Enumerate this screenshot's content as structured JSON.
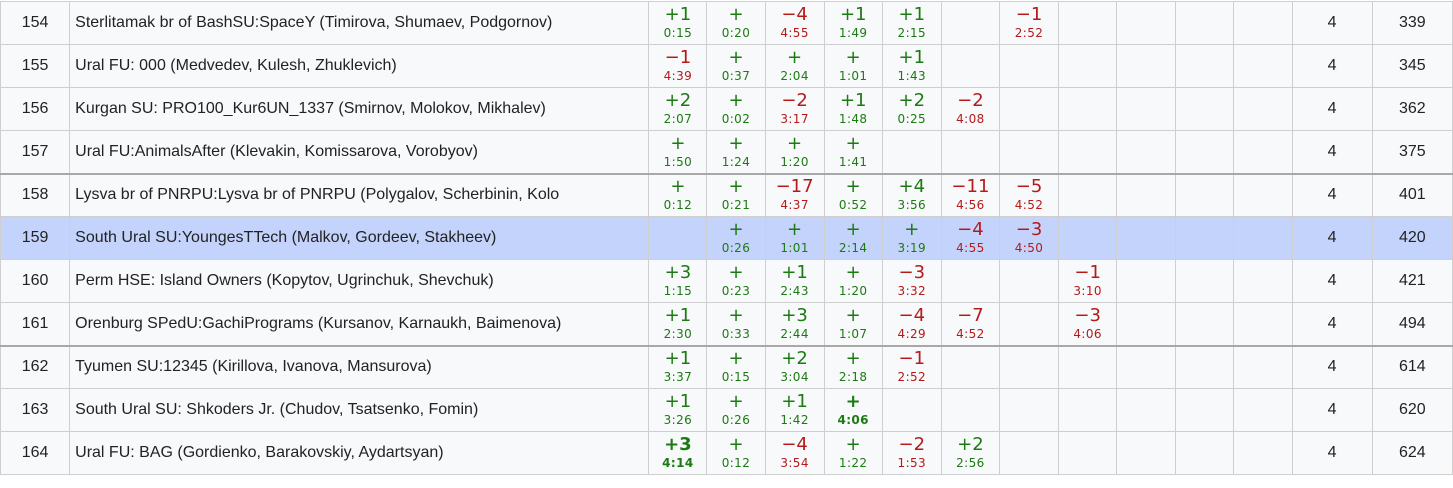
{
  "colors": {
    "solved": "#1c7a12",
    "failed": "#b51a1a",
    "highlight_row": "#c4d3fb",
    "row_bg": "#f8f9fa"
  },
  "rows": [
    {
      "rank": "154",
      "team": "Sterlitamak br of BashSU:SpaceY (Timirova, Shumaev, Podgornov)",
      "solved": "4",
      "penalty": "339",
      "problems": [
        {
          "s": "+1",
          "t": "0:15",
          "ok": true
        },
        {
          "s": "+",
          "t": "0:20",
          "ok": true
        },
        {
          "s": "−4",
          "t": "4:55",
          "ok": false
        },
        {
          "s": "+1",
          "t": "1:49",
          "ok": true
        },
        {
          "s": "+1",
          "t": "2:15",
          "ok": true
        },
        null,
        {
          "s": "−1",
          "t": "2:52",
          "ok": false
        },
        null,
        null,
        null,
        null
      ]
    },
    {
      "rank": "155",
      "team": "Ural FU: 000 (Medvedev, Kulesh, Zhuklevich)",
      "solved": "4",
      "penalty": "345",
      "problems": [
        {
          "s": "−1",
          "t": "4:39",
          "ok": false
        },
        {
          "s": "+",
          "t": "0:37",
          "ok": true
        },
        {
          "s": "+",
          "t": "2:04",
          "ok": true
        },
        {
          "s": "+",
          "t": "1:01",
          "ok": true
        },
        {
          "s": "+1",
          "t": "1:43",
          "ok": true
        },
        null,
        null,
        null,
        null,
        null,
        null
      ]
    },
    {
      "rank": "156",
      "team": "Kurgan SU: PRO100_Kur6UN_1337 (Smirnov, Molokov, Mikhalev)",
      "solved": "4",
      "penalty": "362",
      "problems": [
        {
          "s": "+2",
          "t": "2:07",
          "ok": true
        },
        {
          "s": "+",
          "t": "0:02",
          "ok": true
        },
        {
          "s": "−2",
          "t": "3:17",
          "ok": false
        },
        {
          "s": "+1",
          "t": "1:48",
          "ok": true
        },
        {
          "s": "+2",
          "t": "0:25",
          "ok": true
        },
        {
          "s": "−2",
          "t": "4:08",
          "ok": false
        },
        null,
        null,
        null,
        null,
        null
      ]
    },
    {
      "rank": "157",
      "team": "Ural FU:AnimalsAfter (Klevakin, Komissarova, Vorobyov)",
      "solved": "4",
      "penalty": "375",
      "problems": [
        {
          "s": "+",
          "t": "1:50",
          "ok": true
        },
        {
          "s": "+",
          "t": "1:24",
          "ok": true
        },
        {
          "s": "+",
          "t": "1:20",
          "ok": true
        },
        {
          "s": "+",
          "t": "1:41",
          "ok": true
        },
        null,
        null,
        null,
        null,
        null,
        null,
        null
      ]
    },
    {
      "rank": "158",
      "team": "Lysva br of PNRPU:Lysva br of PNRPU (Polygalov, Scherbinin, Kolo",
      "solved": "4",
      "penalty": "401",
      "groupStart": true,
      "problems": [
        {
          "s": "+",
          "t": "0:12",
          "ok": true
        },
        {
          "s": "+",
          "t": "0:21",
          "ok": true
        },
        {
          "s": "−17",
          "t": "4:37",
          "ok": false
        },
        {
          "s": "+",
          "t": "0:52",
          "ok": true
        },
        {
          "s": "+4",
          "t": "3:56",
          "ok": true
        },
        {
          "s": "−11",
          "t": "4:56",
          "ok": false
        },
        {
          "s": "−5",
          "t": "4:52",
          "ok": false
        },
        null,
        null,
        null,
        null
      ]
    },
    {
      "rank": "159",
      "team": "South Ural SU:YoungesTTech (Malkov, Gordeev, Stakheev)",
      "solved": "4",
      "penalty": "420",
      "highlight": true,
      "problems": [
        null,
        {
          "s": "+",
          "t": "0:26",
          "ok": true
        },
        {
          "s": "+",
          "t": "1:01",
          "ok": true
        },
        {
          "s": "+",
          "t": "2:14",
          "ok": true
        },
        {
          "s": "+",
          "t": "3:19",
          "ok": true
        },
        {
          "s": "−4",
          "t": "4:55",
          "ok": false
        },
        {
          "s": "−3",
          "t": "4:50",
          "ok": false
        },
        null,
        null,
        null,
        null
      ]
    },
    {
      "rank": "160",
      "team": "Perm HSE: Island Owners (Kopytov, Ugrinchuk, Shevchuk)",
      "solved": "4",
      "penalty": "421",
      "problems": [
        {
          "s": "+3",
          "t": "1:15",
          "ok": true
        },
        {
          "s": "+",
          "t": "0:23",
          "ok": true
        },
        {
          "s": "+1",
          "t": "2:43",
          "ok": true
        },
        {
          "s": "+",
          "t": "1:20",
          "ok": true
        },
        {
          "s": "−3",
          "t": "3:32",
          "ok": false
        },
        null,
        null,
        {
          "s": "−1",
          "t": "3:10",
          "ok": false
        },
        null,
        null,
        null
      ]
    },
    {
      "rank": "161",
      "team": "Orenburg SPedU:GachiPrograms (Kursanov, Karnaukh, Baimenova)",
      "solved": "4",
      "penalty": "494",
      "problems": [
        {
          "s": "+1",
          "t": "2:30",
          "ok": true
        },
        {
          "s": "+",
          "t": "0:33",
          "ok": true
        },
        {
          "s": "+3",
          "t": "2:44",
          "ok": true
        },
        {
          "s": "+",
          "t": "1:07",
          "ok": true
        },
        {
          "s": "−4",
          "t": "4:29",
          "ok": false
        },
        {
          "s": "−7",
          "t": "4:52",
          "ok": false
        },
        null,
        {
          "s": "−3",
          "t": "4:06",
          "ok": false
        },
        null,
        null,
        null
      ]
    },
    {
      "rank": "162",
      "team": "Tyumen SU:12345 (Kirillova, Ivanova, Mansurova)",
      "solved": "4",
      "penalty": "614",
      "groupStart": true,
      "problems": [
        {
          "s": "+1",
          "t": "3:37",
          "ok": true
        },
        {
          "s": "+",
          "t": "0:15",
          "ok": true
        },
        {
          "s": "+2",
          "t": "3:04",
          "ok": true
        },
        {
          "s": "+",
          "t": "2:18",
          "ok": true
        },
        {
          "s": "−1",
          "t": "2:52",
          "ok": false
        },
        null,
        null,
        null,
        null,
        null,
        null
      ]
    },
    {
      "rank": "163",
      "team": "South Ural SU: Shkoders Jr. (Chudov, Tsatsenko, Fomin)",
      "solved": "4",
      "penalty": "620",
      "problems": [
        {
          "s": "+1",
          "t": "3:26",
          "ok": true
        },
        {
          "s": "+",
          "t": "0:26",
          "ok": true
        },
        {
          "s": "+1",
          "t": "1:42",
          "ok": true
        },
        {
          "s": "+",
          "t": "4:06",
          "ok": true,
          "bold": true
        },
        null,
        null,
        null,
        null,
        null,
        null,
        null
      ]
    },
    {
      "rank": "164",
      "team": "Ural FU: BAG (Gordienko, Barakovskiy, Aydartsyan)",
      "solved": "4",
      "penalty": "624",
      "problems": [
        {
          "s": "+3",
          "t": "4:14",
          "ok": true,
          "bold": true
        },
        {
          "s": "+",
          "t": "0:12",
          "ok": true
        },
        {
          "s": "−4",
          "t": "3:54",
          "ok": false
        },
        {
          "s": "+",
          "t": "1:22",
          "ok": true
        },
        {
          "s": "−2",
          "t": "1:53",
          "ok": false
        },
        {
          "s": "+2",
          "t": "2:56",
          "ok": true
        },
        null,
        null,
        null,
        null,
        null
      ]
    }
  ]
}
